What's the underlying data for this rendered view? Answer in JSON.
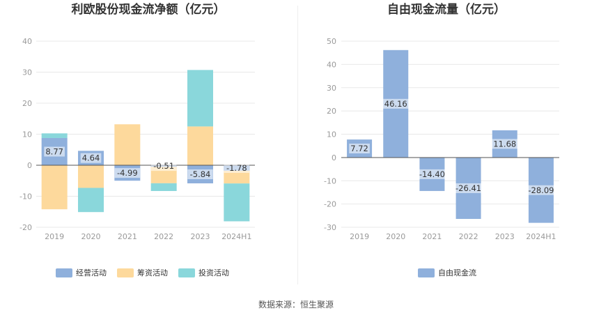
{
  "footer": {
    "source": "数据来源：恒生聚源"
  },
  "chart_data": [
    {
      "type": "bar",
      "stacked": true,
      "title": "利欧股份现金流净额（亿元）",
      "categories": [
        "2019",
        "2020",
        "2021",
        "2022",
        "2023",
        "2024H1"
      ],
      "yticks": [
        "40",
        "30",
        "20",
        "10",
        "0",
        "-10",
        "-20"
      ],
      "ylim": [
        -20,
        40
      ],
      "grid": true,
      "legend_position": "bottom",
      "series": [
        {
          "name": "经营活动",
          "color": "#8fb0dc",
          "values": [
            8.77,
            4.64,
            -4.99,
            -0.51,
            -5.84,
            -1.78
          ]
        },
        {
          "name": "筹资活动",
          "color": "#fdd99c",
          "values": [
            -14.2,
            -7.3,
            13.2,
            -5.3,
            12.5,
            -4.1
          ]
        },
        {
          "name": "投资活动",
          "color": "#8ad7db",
          "values": [
            1.5,
            -7.8,
            0,
            -2.5,
            18.2,
            -12.2
          ]
        }
      ],
      "data_labels": [
        "8.77",
        "4.64",
        "-4.99",
        "-0.51",
        "-5.84",
        "-1.78"
      ]
    },
    {
      "type": "bar",
      "title": "自由现金流量（亿元）",
      "categories": [
        "2019",
        "2020",
        "2021",
        "2022",
        "2023",
        "2024H1"
      ],
      "yticks": [
        "50",
        "40",
        "30",
        "20",
        "10",
        "0",
        "-10",
        "-20",
        "-30"
      ],
      "ylim": [
        -30,
        50
      ],
      "grid": true,
      "legend_position": "bottom",
      "series": [
        {
          "name": "自由现金流",
          "color": "#8fb0dc",
          "values": [
            7.72,
            46.16,
            -14.4,
            -26.41,
            11.68,
            -28.09
          ]
        }
      ],
      "data_labels": [
        "7.72",
        "46.16",
        "-14.40",
        "-26.41",
        "11.68",
        "-28.09"
      ]
    }
  ]
}
